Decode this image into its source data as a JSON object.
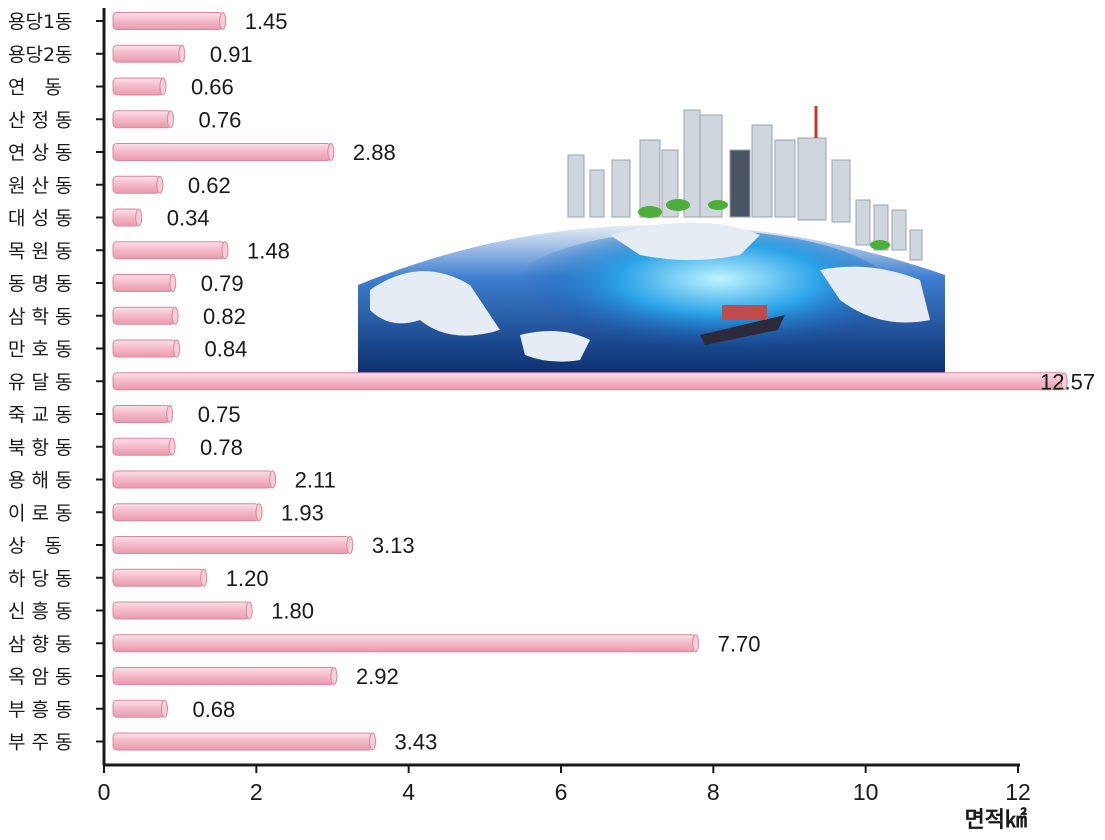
{
  "chart_data": {
    "type": "bar",
    "orientation": "horizontal",
    "categories": [
      "용당1동",
      "용당2동",
      "연　동",
      "산 정 동",
      "연 상 동",
      "원 산 동",
      "대 성 동",
      "목 원 동",
      "동 명 동",
      "삼 학 동",
      "만 호 동",
      "유 달 동",
      "죽 교 동",
      "북 항 동",
      "용 해 동",
      "이 로 동",
      "상　동",
      "하 당 동",
      "신 흥 동",
      "삼 향 동",
      "옥 암 동",
      "부 흥 동",
      "부 주 동"
    ],
    "values": [
      1.45,
      0.91,
      0.66,
      0.76,
      2.88,
      0.62,
      0.34,
      1.48,
      0.79,
      0.82,
      0.84,
      12.57,
      0.75,
      0.78,
      2.11,
      1.93,
      3.13,
      1.2,
      1.8,
      7.7,
      2.92,
      0.68,
      3.43
    ],
    "value_labels": [
      "1.45",
      "0.91",
      "0.66",
      "0.76",
      "2.88",
      "0.62",
      "0.34",
      "1.48",
      "0.79",
      "0.82",
      "0.84",
      "12.57",
      "0.75",
      "0.78",
      "2.11",
      "1.93",
      "3.13",
      "1.20",
      "1.80",
      "7.70",
      "2.92",
      "0.68",
      "3.43"
    ],
    "xlim": [
      0,
      12
    ],
    "x_ticks": [
      "0",
      "2",
      "4",
      "6",
      "8",
      "10",
      "12"
    ],
    "xlabel": "면적㎢",
    "bar_color": "#f4b8c6",
    "bar_edge_color": "#d9879b",
    "grid": false
  }
}
